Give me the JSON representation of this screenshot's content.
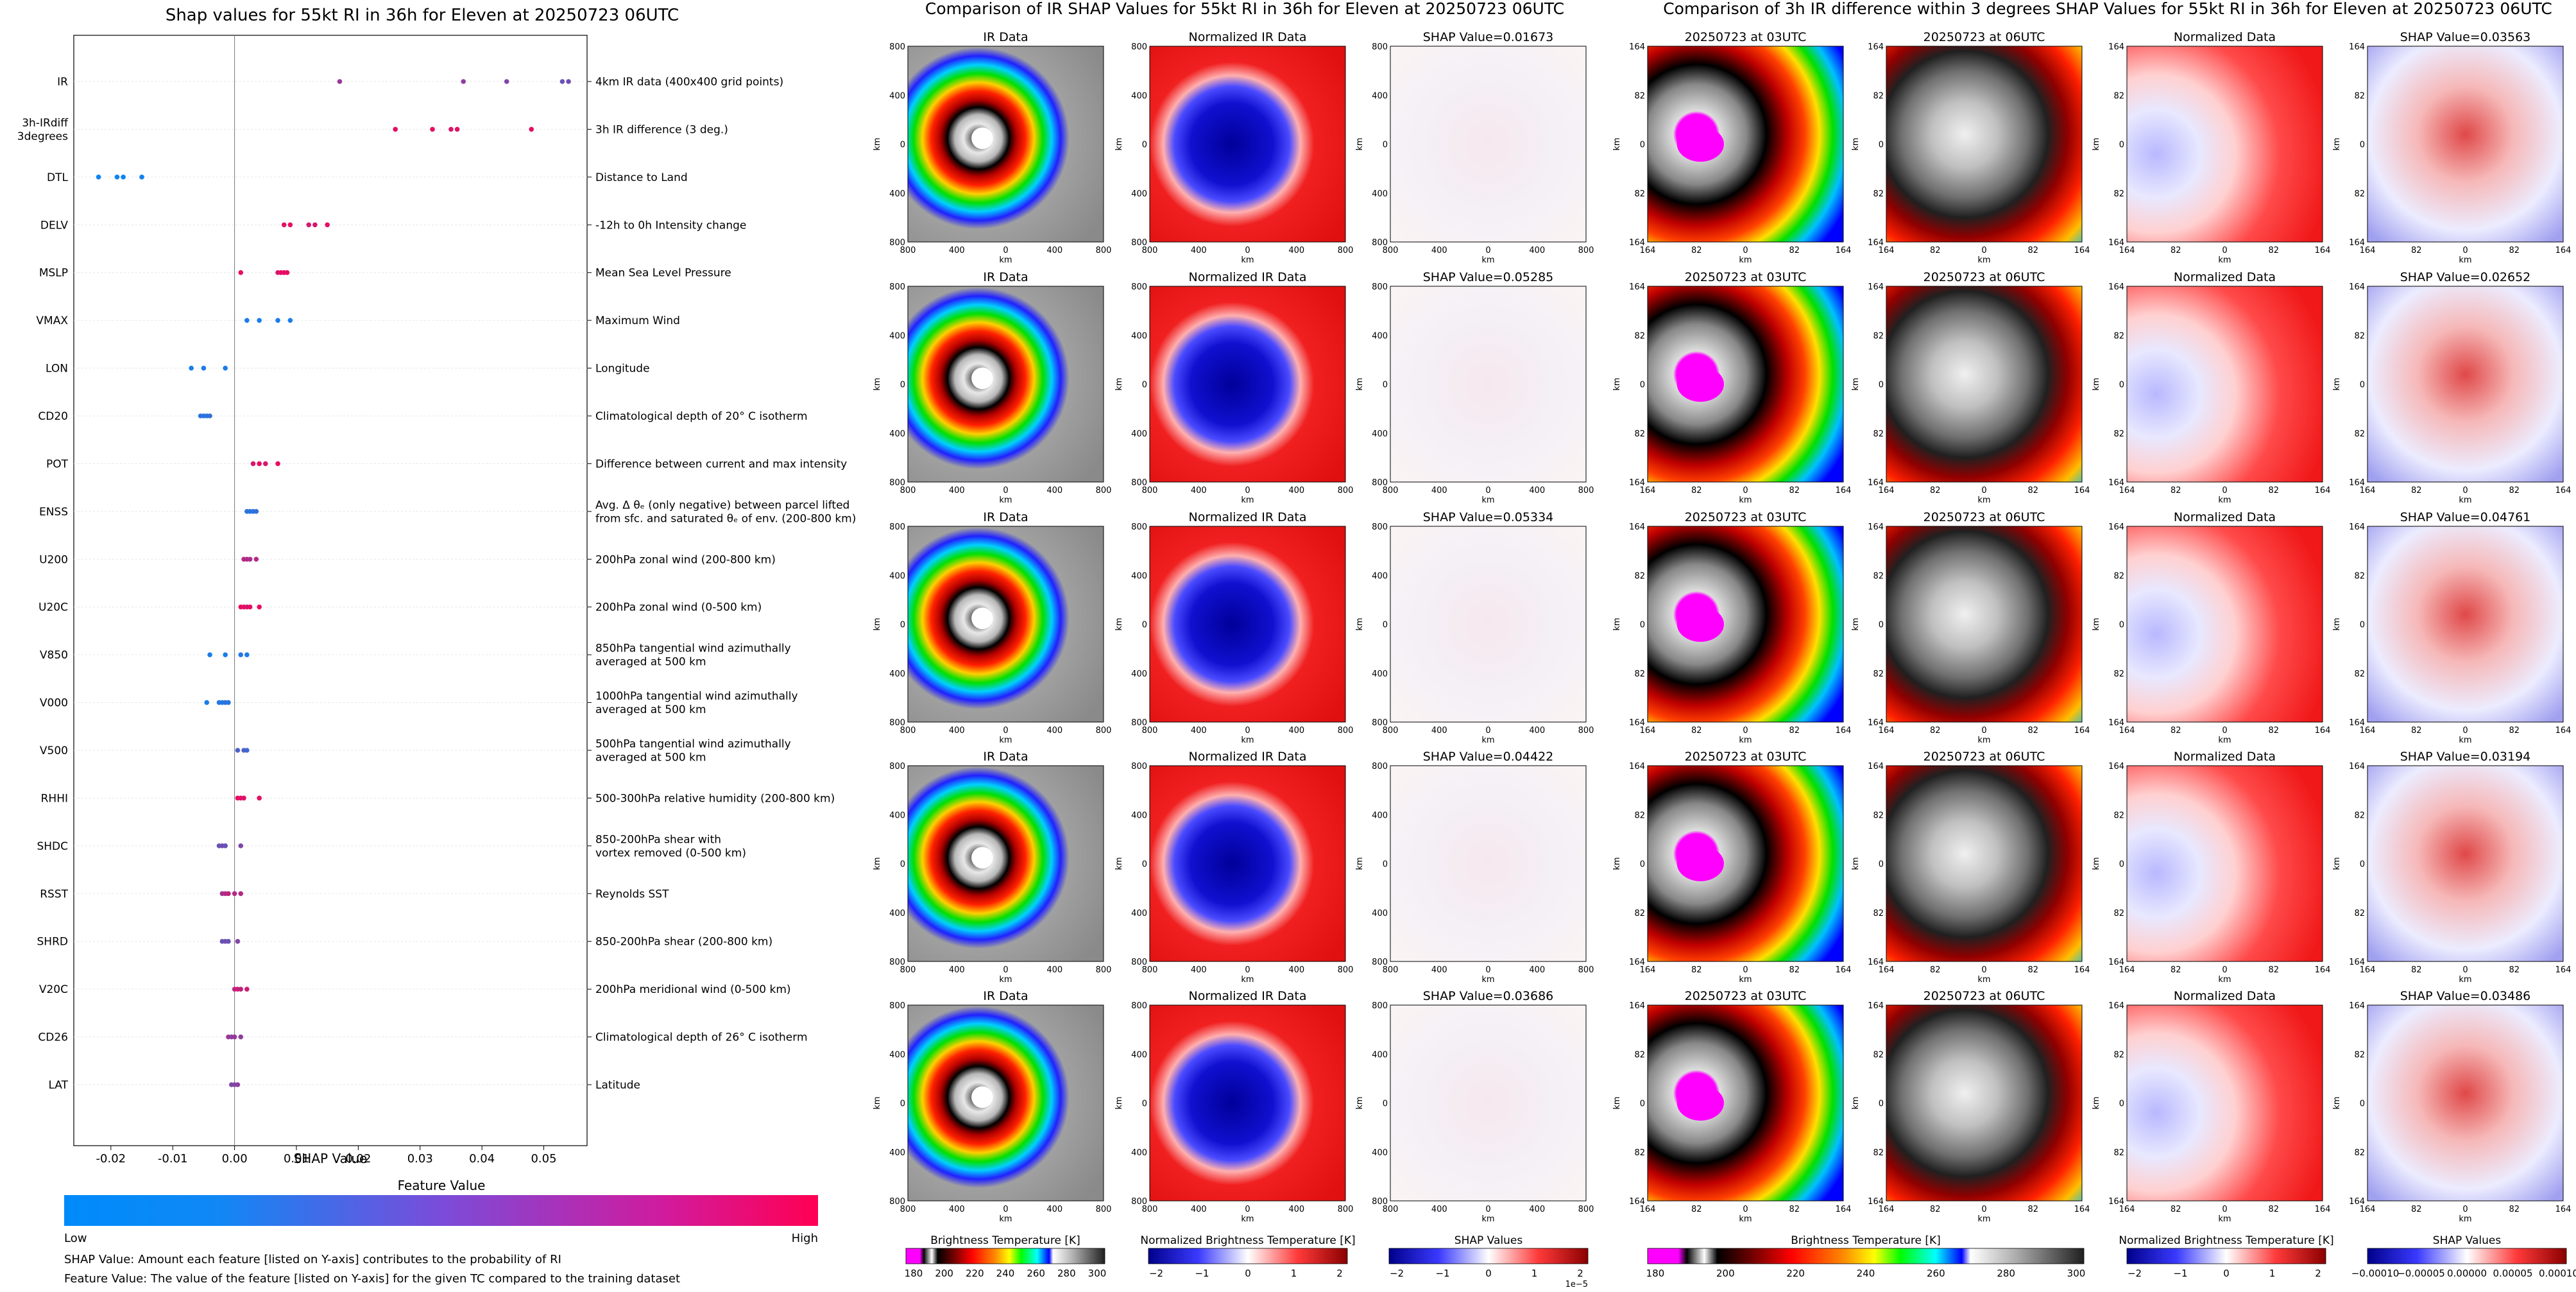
{
  "colors": {
    "shap_low": "#008bfb",
    "shap_high": "#ff0052",
    "ir_palette": [
      "#ff00ff",
      "#000000",
      "#ff0000",
      "#ff8c00",
      "#ffff00",
      "#00ff00",
      "#00ffff",
      "#0000ff",
      "#ffffff"
    ],
    "diverging": [
      "#0000b0",
      "#ffffff",
      "#c00000"
    ]
  },
  "shap_panel": {
    "title": "Shap values for 55kt RI in 36h for Eleven at 20250723 06UTC",
    "xlabel": "SHAP Value",
    "colorbar_title": "Feature Value",
    "low_label": "Low",
    "high_label": "High",
    "footnote1": "SHAP Value: Amount each feature [listed on Y-axis] contributes to the probability of RI",
    "footnote2": "Feature Value: The value of the feature [listed on Y-axis] for the given TC compared to the training dataset"
  },
  "chart_data": [
    {
      "type": "scatter",
      "title": "Shap values for 55kt RI in 36h for Eleven at 20250723 06UTC",
      "xlabel": "SHAP Value",
      "xlim": [
        -0.026,
        0.057
      ],
      "xticks": [
        "-0.02",
        "-0.01",
        "0.00",
        "0.01",
        "0.02",
        "0.03",
        "0.04",
        "0.05"
      ],
      "xtick_values": [
        -0.02,
        -0.01,
        0.0,
        0.01,
        0.02,
        0.03,
        0.04,
        0.05
      ],
      "features": [
        {
          "name": "IR",
          "desc": [
            "4km IR data (400x400 grid points)"
          ],
          "x": [
            0.017,
            0.037,
            0.044,
            0.053,
            0.054
          ],
          "v": [
            0.6,
            0.55,
            0.5,
            0.4,
            0.45
          ]
        },
        {
          "name": [
            "3h-IRdiff",
            "3degrees"
          ],
          "desc": [
            "3h IR difference (3 deg.)"
          ],
          "x": [
            0.026,
            0.032,
            0.035,
            0.036,
            0.048
          ],
          "v": [
            0.9,
            0.9,
            0.85,
            0.88,
            0.9
          ]
        },
        {
          "name": "DTL",
          "desc": [
            "Distance to Land"
          ],
          "x": [
            -0.022,
            -0.019,
            -0.018,
            -0.015
          ],
          "v": [
            0.05,
            0.06,
            0.05,
            0.07
          ]
        },
        {
          "name": "DELV",
          "desc": [
            "-12h to 0h Intensity change"
          ],
          "x": [
            0.008,
            0.009,
            0.012,
            0.013,
            0.015
          ],
          "v": [
            0.85,
            0.9,
            0.8,
            0.85,
            0.9
          ]
        },
        {
          "name": "MSLP",
          "desc": [
            "Mean Sea Level Pressure"
          ],
          "x": [
            0.001,
            0.007,
            0.0075,
            0.008,
            0.0085
          ],
          "v": [
            0.9,
            0.85,
            0.9,
            0.9,
            0.9
          ]
        },
        {
          "name": "VMAX",
          "desc": [
            "Maximum Wind"
          ],
          "x": [
            0.002,
            0.004,
            0.007,
            0.009
          ],
          "v": [
            0.1,
            0.1,
            0.1,
            0.1
          ]
        },
        {
          "name": "LON",
          "desc": [
            "Longitude"
          ],
          "x": [
            -0.007,
            -0.005,
            -0.0015
          ],
          "v": [
            0.1,
            0.1,
            0.1
          ]
        },
        {
          "name": "CD20",
          "desc": [
            "Climatological depth of 20° C isotherm"
          ],
          "x": [
            -0.0055,
            -0.005,
            -0.0045,
            -0.004
          ],
          "v": [
            0.15,
            0.2,
            0.15,
            0.2
          ]
        },
        {
          "name": "POT",
          "desc": [
            "Difference between current and max intensity"
          ],
          "x": [
            0.003,
            0.004,
            0.005,
            0.007
          ],
          "v": [
            0.85,
            0.9,
            0.85,
            0.9
          ]
        },
        {
          "name": "ENSS",
          "desc": [
            "Avg. Δ θₑ (only negative) between parcel lifted",
            "from sfc. and saturated θₑ of env. (200-800 km)"
          ],
          "x": [
            0.002,
            0.0025,
            0.003,
            0.0035
          ],
          "v": [
            0.15,
            0.2,
            0.15,
            0.2
          ]
        },
        {
          "name": "U200",
          "desc": [
            "200hPa zonal wind (200-800 km)"
          ],
          "x": [
            0.0015,
            0.002,
            0.0025,
            0.0035
          ],
          "v": [
            0.7,
            0.7,
            0.65,
            0.7
          ]
        },
        {
          "name": "U20C",
          "desc": [
            "200hPa zonal wind (0-500 km)"
          ],
          "x": [
            0.001,
            0.0015,
            0.002,
            0.0025,
            0.004
          ],
          "v": [
            0.9,
            0.9,
            0.85,
            0.9,
            0.9
          ]
        },
        {
          "name": "V850",
          "desc": [
            "850hPa tangential wind azimuthally",
            "averaged at 500 km"
          ],
          "x": [
            -0.004,
            -0.0015,
            0.001,
            0.002
          ],
          "v": [
            0.1,
            0.1,
            0.15,
            0.1
          ]
        },
        {
          "name": "V000",
          "desc": [
            "1000hPa tangential wind azimuthally",
            "averaged at 500 km"
          ],
          "x": [
            -0.0045,
            -0.0025,
            -0.002,
            -0.0015,
            -0.001
          ],
          "v": [
            0.1,
            0.15,
            0.1,
            0.2,
            0.15
          ]
        },
        {
          "name": "V500",
          "desc": [
            "500hPa tangential wind azimuthally",
            "averaged at 500 km"
          ],
          "x": [
            0.0005,
            0.0015,
            0.002
          ],
          "v": [
            0.3,
            0.3,
            0.25
          ]
        },
        {
          "name": "RHHI",
          "desc": [
            "500-300hPa relative humidity (200-800 km)"
          ],
          "x": [
            0.0005,
            0.001,
            0.0015,
            0.004
          ],
          "v": [
            0.9,
            0.9,
            0.85,
            0.9
          ]
        },
        {
          "name": "SHDC",
          "desc": [
            "850-200hPa shear with",
            "vortex removed (0-500 km)"
          ],
          "x": [
            -0.0025,
            -0.002,
            -0.0015,
            0.001
          ],
          "v": [
            0.4,
            0.45,
            0.4,
            0.5
          ]
        },
        {
          "name": "RSST",
          "desc": [
            "Reynolds SST"
          ],
          "x": [
            -0.002,
            -0.0015,
            -0.001,
            0.0,
            0.001
          ],
          "v": [
            0.65,
            0.7,
            0.75,
            0.7,
            0.7
          ]
        },
        {
          "name": "SHRD",
          "desc": [
            "850-200hPa shear (200-800 km)"
          ],
          "x": [
            -0.002,
            -0.0015,
            -0.001,
            0.0005
          ],
          "v": [
            0.4,
            0.45,
            0.4,
            0.5
          ]
        },
        {
          "name": "V20C",
          "desc": [
            "200hPa meridional wind (0-500 km)"
          ],
          "x": [
            0.0,
            0.0005,
            0.001,
            0.002
          ],
          "v": [
            0.75,
            0.8,
            0.75,
            0.8
          ]
        },
        {
          "name": "CD26",
          "desc": [
            "Climatological depth of 26° C isotherm"
          ],
          "x": [
            -0.001,
            -0.0005,
            0.0,
            0.001
          ],
          "v": [
            0.6,
            0.55,
            0.6,
            0.55
          ]
        },
        {
          "name": "LAT",
          "desc": [
            "Latitude"
          ],
          "x": [
            -0.0005,
            0.0,
            0.0005
          ],
          "v": [
            0.5,
            0.5,
            0.55
          ]
        }
      ]
    }
  ],
  "ir_section": {
    "title": "Comparison of IR SHAP Values for 55kt RI in 36h for Eleven at 20250723 06UTC",
    "col_titles": [
      "IR Data",
      "Normalized IR Data"
    ],
    "shap_titles": [
      "SHAP Value=0.01673",
      "SHAP Value=0.05285",
      "SHAP Value=0.05334",
      "SHAP Value=0.04422",
      "SHAP Value=0.03686"
    ],
    "ticks": [
      "800",
      "400",
      "0",
      "400",
      "800"
    ],
    "axis_label": "km",
    "colorbars": [
      {
        "label": "Brightness Temperature [K]",
        "ticks": [
          "180",
          "200",
          "220",
          "240",
          "260",
          "280",
          "300"
        ],
        "extra": ""
      },
      {
        "label": "Normalized Brightness Temperature [K]",
        "ticks": [
          "−2",
          "−1",
          "0",
          "1",
          "2"
        ],
        "extra": ""
      },
      {
        "label": "SHAP Values",
        "ticks": [
          "−2",
          "−1",
          "0",
          "1",
          "2"
        ],
        "extra": "1e−5"
      }
    ]
  },
  "diff_section": {
    "title": "Comparison of 3h IR difference within 3 degrees SHAP Values for 55kt RI in 36h for Eleven at 20250723 06UTC",
    "col_titles": [
      "20250723 at 03UTC",
      "20250723 at 06UTC",
      "Normalized Data"
    ],
    "shap_titles": [
      "SHAP Value=0.03563",
      "SHAP Value=0.02652",
      "SHAP Value=0.04761",
      "SHAP Value=0.03194",
      "SHAP Value=0.03486"
    ],
    "ticks": [
      "164",
      "82",
      "0",
      "82",
      "164"
    ],
    "axis_label": "km",
    "colorbars": [
      {
        "label": "Brightness Temperature [K]",
        "ticks": [
          "180",
          "200",
          "220",
          "240",
          "260",
          "280",
          "300"
        ],
        "extra": ""
      },
      {
        "label": "Normalized Brightness Temperature [K]",
        "ticks": [
          "−2",
          "−1",
          "0",
          "1",
          "2"
        ],
        "extra": ""
      },
      {
        "label": "SHAP Values",
        "ticks": [
          "−0.00010",
          "−0.00005",
          "0.00000",
          "0.00005",
          "0.00010"
        ],
        "extra": ""
      }
    ]
  }
}
